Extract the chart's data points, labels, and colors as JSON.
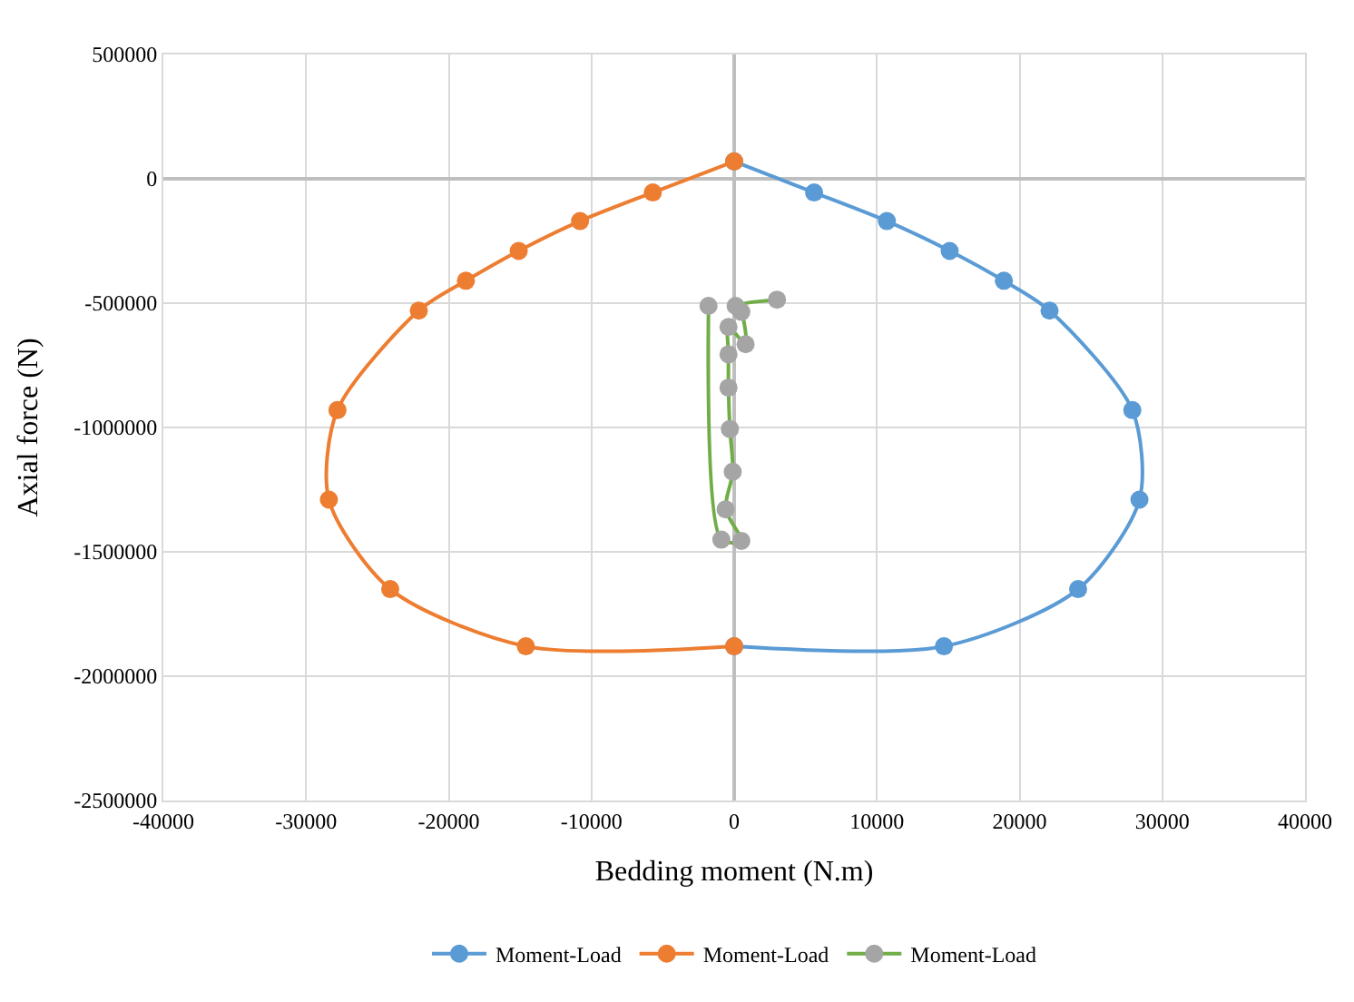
{
  "chart_data": {
    "type": "line",
    "xlabel": "Bedding moment (N.m)",
    "ylabel": "Axial force (N)",
    "xlim": [
      -40000,
      40000
    ],
    "xticks": [
      -40000,
      -30000,
      -20000,
      -10000,
      0,
      10000,
      20000,
      30000,
      40000
    ],
    "ylim": [
      -2500000,
      500000
    ],
    "yticks": [
      -2500000,
      -2000000,
      -1500000,
      -1000000,
      -500000,
      0,
      500000
    ],
    "grid": true,
    "legend": "bottom",
    "marker": "circle",
    "line_style": "solid",
    "series": [
      {
        "name": "Moment-Load",
        "color": "#5b9bd5",
        "x": [
          0,
          5600,
          10700,
          15100,
          18900,
          22100,
          27900,
          28400,
          24100,
          14700,
          0
        ],
        "values": [
          70000,
          -55000,
          -170000,
          -290000,
          -410000,
          -530000,
          -930000,
          -1290000,
          -1650000,
          -1880000,
          -1880000
        ]
      },
      {
        "name": "Moment-Load",
        "color": "#ed7d31",
        "x": [
          0,
          -5700,
          -10800,
          -15100,
          -18800,
          -22100,
          -27800,
          -28400,
          -24100,
          -14600,
          0
        ],
        "values": [
          70000,
          -55000,
          -170000,
          -290000,
          -410000,
          -530000,
          -930000,
          -1290000,
          -1650000,
          -1880000,
          -1880000
        ]
      },
      {
        "name": "Moment-Load",
        "color": "#70ad47",
        "colors": [
          "#a5a5a5",
          "#a5a5a5",
          "#a5a5a5",
          "#a5a5a5",
          "#a5a5a5",
          "#a5a5a5",
          "#a5a5a5",
          "#a5a5a5",
          "#a5a5a5",
          "#a5a5a5",
          "#a5a5a5",
          "#a5a5a5",
          "#a5a5a5"
        ],
        "x": [
          -1800,
          -900,
          500,
          -600,
          -100,
          -300,
          -400,
          -400,
          -400,
          800,
          500,
          100,
          3000
        ],
        "values": [
          -511000,
          -1451000,
          -1456000,
          -1329000,
          -1178000,
          -1006000,
          -840000,
          -706000,
          -596000,
          -665000,
          -535000,
          -511000,
          -486000
        ]
      }
    ]
  }
}
